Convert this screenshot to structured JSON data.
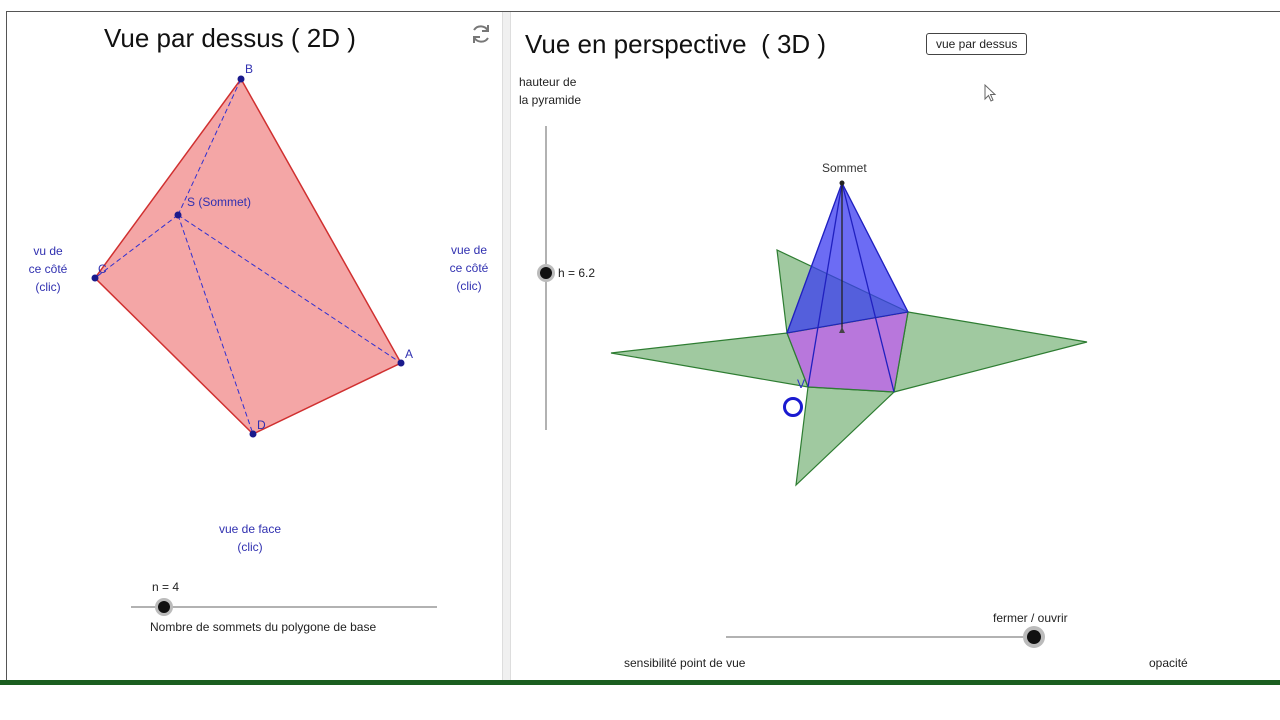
{
  "panel_2d": {
    "title": "Vue par dessus ( 2D )",
    "refresh_icon": "refresh-icon",
    "points": {
      "A": "A",
      "B": "B",
      "C": "C",
      "D": "D",
      "S": "S (Sommet)"
    },
    "side_left": [
      "vu de",
      "ce côté",
      "(clic)"
    ],
    "side_right": [
      "vue de",
      "ce côté",
      "(clic)"
    ],
    "front": [
      "vue de face",
      "(clic)"
    ],
    "slider_n": {
      "value_label": "n = 4",
      "caption": "Nombre de sommets du polygone de base",
      "value": 4
    },
    "colors": {
      "base_fill": "#f4a6a6",
      "base_stroke": "#d03030",
      "point": "#1a1a8c",
      "label_blue": "#3030b0"
    }
  },
  "panel_3d": {
    "title": "Vue en perspective  ( 3D )",
    "view_top_button": "vue par dessus",
    "height_label": [
      "hauteur de",
      "la pyramide"
    ],
    "height_value_label": "h = 6.2",
    "height_value": 6.2,
    "apex_label": "Sommet",
    "v_label": "V",
    "fermer_ouvrir_label": "fermer / ouvrir",
    "fermer_ouvrir_value": 1.0,
    "sensibilite_label": "sensibilité point de vue",
    "opacite_label": "opacité",
    "colors": {
      "pyramid": "#3b3bf0",
      "net": "#8fbf8f",
      "net_stroke": "#2e7d32",
      "base": "#a04ad0"
    }
  }
}
